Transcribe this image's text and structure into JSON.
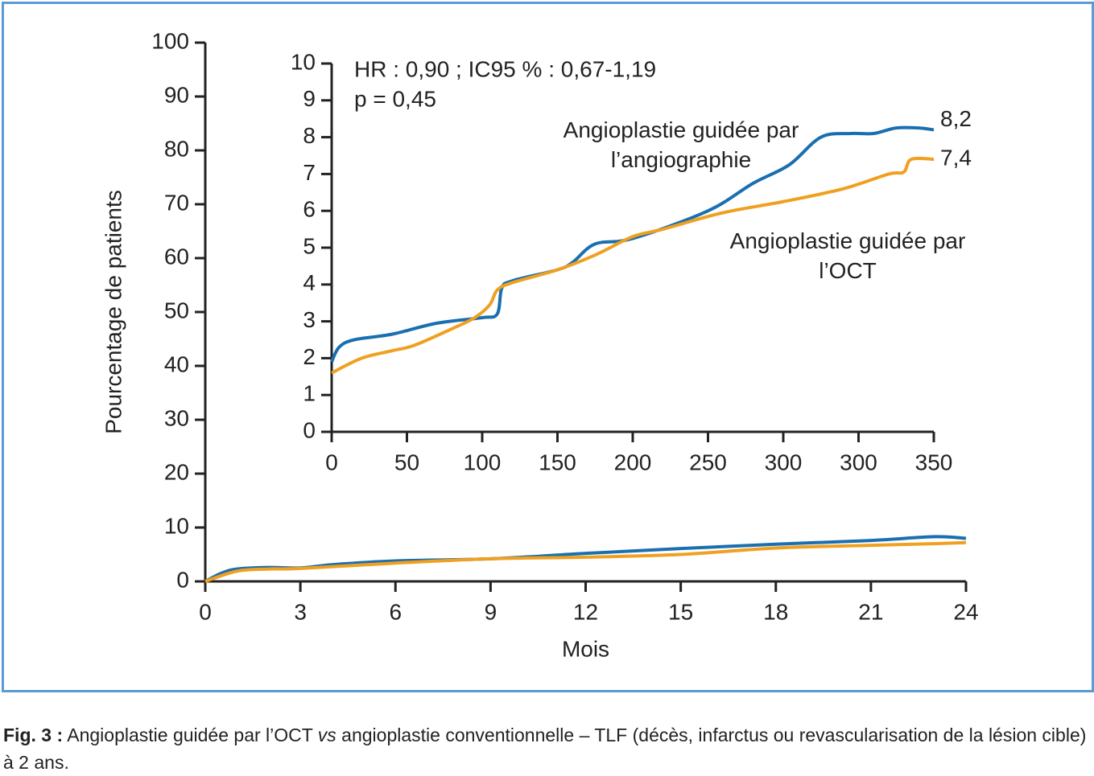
{
  "chart_data": [
    {
      "type": "line",
      "xlabel": "Mois",
      "ylabel": "Pourcentage de patients",
      "xlim": [
        0,
        24
      ],
      "xticks": [
        0,
        3,
        6,
        9,
        12,
        15,
        18,
        21,
        24
      ],
      "ylim": [
        0,
        100
      ],
      "yticks": [
        0,
        10,
        20,
        30,
        40,
        50,
        60,
        70,
        80,
        90,
        100
      ],
      "series": [
        {
          "color": "#1a6faf",
          "x": [
            0,
            0.5,
            1,
            2,
            3,
            4,
            6,
            9,
            12,
            15,
            18,
            21,
            23,
            24
          ],
          "values": [
            0,
            1.5,
            2.3,
            2.6,
            2.5,
            3.1,
            3.8,
            4.2,
            5.2,
            6.1,
            6.9,
            7.6,
            8.3,
            8.0
          ]
        },
        {
          "color": "#f0a020",
          "x": [
            0,
            1,
            2,
            3,
            6,
            9,
            12,
            15,
            18,
            21,
            23,
            24
          ],
          "values": [
            0,
            1.9,
            2.3,
            2.4,
            3.4,
            4.2,
            4.5,
            5.0,
            6.2,
            6.7,
            7.0,
            7.2
          ]
        }
      ]
    },
    {
      "type": "line",
      "annotations": [
        "HR : 0,90 ; IC95 % : 0,67-1,19",
        "p = 0,45"
      ],
      "xlim": [
        0,
        400
      ],
      "xticks": [
        0,
        50,
        100,
        150,
        200,
        250,
        300,
        {
          "value": 350,
          "label": "300"
        },
        {
          "value": 400,
          "label": "350"
        }
      ],
      "ylim": [
        0,
        10
      ],
      "yticks": [
        0,
        1,
        2,
        3,
        4,
        5,
        6,
        7,
        8,
        9,
        10
      ],
      "series": [
        {
          "name": "Angioplastie guidée par l’angiographie",
          "color": "#1a6faf",
          "x": [
            0,
            5,
            15,
            40,
            70,
            100,
            110,
            113,
            120,
            150,
            160,
            175,
            200,
            250,
            280,
            304,
            325,
            345,
            360,
            375,
            390,
            400
          ],
          "values": [
            1.9,
            2.3,
            2.5,
            2.65,
            2.95,
            3.1,
            3.2,
            3.9,
            4.1,
            4.4,
            4.6,
            5.1,
            5.25,
            6.0,
            6.75,
            7.25,
            8.0,
            8.1,
            8.1,
            8.25,
            8.25,
            8.2
          ],
          "end_label": {
            "value": 8.2,
            "label": "8,2"
          }
        },
        {
          "name": "Angioplastie guidée par l’OCT",
          "color": "#f0a020",
          "x": [
            0,
            20,
            40,
            55,
            80,
            95,
            105,
            110,
            120,
            150,
            175,
            200,
            220,
            260,
            300,
            340,
            370,
            380,
            385,
            400
          ],
          "values": [
            1.6,
            2.0,
            2.2,
            2.35,
            2.8,
            3.1,
            3.45,
            3.85,
            4.05,
            4.4,
            4.8,
            5.3,
            5.5,
            5.95,
            6.25,
            6.6,
            7.0,
            7.05,
            7.4,
            7.4
          ],
          "end_label": {
            "value": 7.4,
            "label": "7,4"
          }
        }
      ]
    }
  ],
  "caption": {
    "label": "Fig. 3 :",
    "parts": [
      "Angioplastie guidée par l’OCT ",
      "vs",
      " angioplastie conventionnelle – TLF (décès, infarctus ou revascularisation de la lésion cible) à 2 ans."
    ]
  }
}
